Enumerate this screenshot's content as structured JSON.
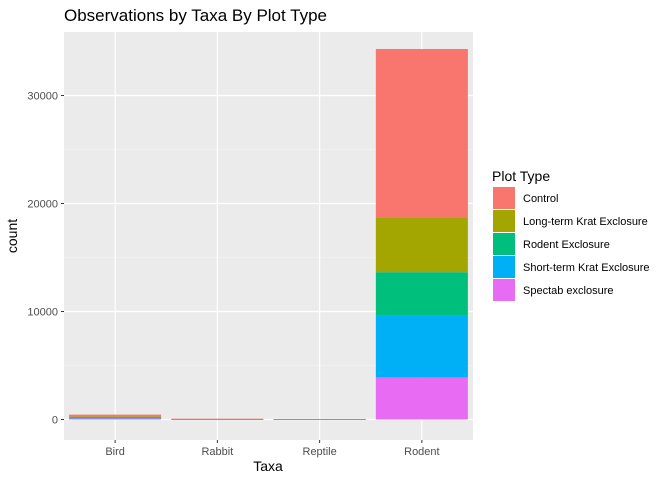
{
  "chart_data": {
    "type": "bar",
    "stacked": true,
    "title": "Observations by Taxa By Plot Type",
    "xlabel": "Taxa",
    "ylabel": "count",
    "categories": [
      "Bird",
      "Rabbit",
      "Reptile",
      "Rodent"
    ],
    "ylim": [
      0,
      35970
    ],
    "yticks": [
      0,
      10000,
      20000,
      30000
    ],
    "yticklabels": [
      "0",
      "10000",
      "20000",
      "30000"
    ],
    "grid": true,
    "legend": {
      "title": "Plot Type",
      "position": "right"
    },
    "series": [
      {
        "name": "Control",
        "color": "#F8766D",
        "values": [
          160,
          37,
          20,
          15611
        ]
      },
      {
        "name": "Long-term Krat Exclosure",
        "color": "#A3A500",
        "values": [
          60,
          6,
          4,
          5056
        ]
      },
      {
        "name": "Rodent Exclosure",
        "color": "#00BF7D",
        "values": [
          50,
          6,
          6,
          4002
        ]
      },
      {
        "name": "Short-term Krat Exclosure",
        "color": "#00B0F6",
        "values": [
          80,
          11,
          7,
          5737
        ]
      },
      {
        "name": "Spectab exclosure",
        "color": "#E76BF3",
        "values": [
          100,
          15,
          8,
          3900
        ]
      }
    ]
  }
}
